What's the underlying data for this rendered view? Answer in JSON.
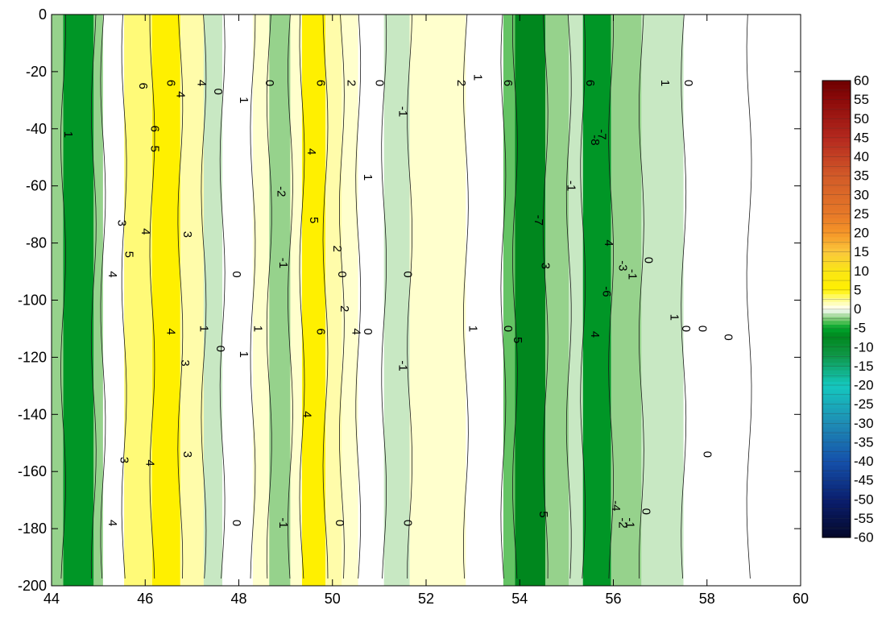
{
  "chart_data": {
    "type": "heatmap",
    "title": "",
    "xlabel": "",
    "ylabel": "",
    "xlim": [
      44,
      60
    ],
    "ylim": [
      -200,
      0
    ],
    "x_ticks": [
      44,
      46,
      48,
      50,
      52,
      54,
      56,
      58,
      60
    ],
    "y_ticks": [
      0,
      -20,
      -40,
      -60,
      -80,
      -100,
      -120,
      -140,
      -160,
      -180,
      -200
    ],
    "colorbar": {
      "min": -60,
      "max": 60,
      "tick_labels": [
        60,
        55,
        50,
        45,
        40,
        35,
        30,
        25,
        20,
        15,
        10,
        5,
        0,
        -5,
        -10,
        -15,
        -20,
        -25,
        -30,
        -35,
        -40,
        -45,
        -50,
        -55,
        -60
      ]
    },
    "field_bands": [
      {
        "x0": 44.0,
        "x1": 44.25,
        "value": -2
      },
      {
        "x0": 44.25,
        "x1": 44.9,
        "value": -6
      },
      {
        "x0": 44.9,
        "x1": 45.1,
        "value": -2
      },
      {
        "x0": 45.1,
        "x1": 45.55,
        "value": 0
      },
      {
        "x0": 45.55,
        "x1": 46.15,
        "value": 3
      },
      {
        "x0": 46.15,
        "x1": 46.75,
        "value": 5
      },
      {
        "x0": 46.75,
        "x1": 47.25,
        "value": 2
      },
      {
        "x0": 47.25,
        "x1": 47.65,
        "value": -1
      },
      {
        "x0": 47.65,
        "x1": 48.3,
        "value": 0
      },
      {
        "x0": 48.3,
        "x1": 48.65,
        "value": 1
      },
      {
        "x0": 48.65,
        "x1": 49.1,
        "value": -2
      },
      {
        "x0": 49.1,
        "x1": 49.35,
        "value": 1
      },
      {
        "x0": 49.35,
        "x1": 49.85,
        "value": 5
      },
      {
        "x0": 49.85,
        "x1": 50.2,
        "value": 2
      },
      {
        "x0": 50.2,
        "x1": 50.55,
        "value": 1
      },
      {
        "x0": 50.55,
        "x1": 51.1,
        "value": 0
      },
      {
        "x0": 51.1,
        "x1": 51.65,
        "value": -1
      },
      {
        "x0": 51.65,
        "x1": 52.85,
        "value": 1
      },
      {
        "x0": 52.85,
        "x1": 53.65,
        "value": 0
      },
      {
        "x0": 53.65,
        "x1": 53.9,
        "value": -3
      },
      {
        "x0": 53.9,
        "x1": 54.55,
        "value": -7
      },
      {
        "x0": 54.55,
        "x1": 55.05,
        "value": -2
      },
      {
        "x0": 55.05,
        "x1": 55.35,
        "value": -1
      },
      {
        "x0": 55.35,
        "x1": 55.95,
        "value": -6
      },
      {
        "x0": 55.95,
        "x1": 56.6,
        "value": -2
      },
      {
        "x0": 56.6,
        "x1": 57.5,
        "value": -1
      },
      {
        "x0": 57.5,
        "x1": 58.9,
        "value": 0
      },
      {
        "x0": 58.9,
        "x1": 60.0,
        "value": 0
      }
    ],
    "contour_labels": [
      {
        "x": 44.35,
        "y": -42,
        "text": "1"
      },
      {
        "x": 45.5,
        "y": -73,
        "text": "3"
      },
      {
        "x": 45.65,
        "y": -84,
        "text": "5"
      },
      {
        "x": 45.3,
        "y": -91,
        "text": "4"
      },
      {
        "x": 45.55,
        "y": -156,
        "text": "3"
      },
      {
        "x": 45.3,
        "y": -178,
        "text": "4"
      },
      {
        "x": 45.95,
        "y": -25,
        "text": "6"
      },
      {
        "x": 46.2,
        "y": -40,
        "text": "6"
      },
      {
        "x": 46.2,
        "y": -47,
        "text": "5"
      },
      {
        "x": 46.0,
        "y": -76,
        "text": "4"
      },
      {
        "x": 46.55,
        "y": -24,
        "text": "6"
      },
      {
        "x": 46.75,
        "y": -28,
        "text": "4"
      },
      {
        "x": 47.2,
        "y": -24,
        "text": "4"
      },
      {
        "x": 46.9,
        "y": -77,
        "text": "3"
      },
      {
        "x": 46.1,
        "y": -157,
        "text": "4"
      },
      {
        "x": 46.9,
        "y": -154,
        "text": "3"
      },
      {
        "x": 46.55,
        "y": -111,
        "text": "4"
      },
      {
        "x": 46.85,
        "y": -122,
        "text": "3"
      },
      {
        "x": 47.55,
        "y": -27,
        "text": "0"
      },
      {
        "x": 47.25,
        "y": -110,
        "text": "1"
      },
      {
        "x": 47.6,
        "y": -117,
        "text": "0"
      },
      {
        "x": 47.95,
        "y": -91,
        "text": "0"
      },
      {
        "x": 47.95,
        "y": -178,
        "text": "0"
      },
      {
        "x": 48.1,
        "y": -30,
        "text": "1"
      },
      {
        "x": 48.1,
        "y": -119,
        "text": "1"
      },
      {
        "x": 48.4,
        "y": -110,
        "text": "1"
      },
      {
        "x": 48.65,
        "y": -24,
        "text": "0"
      },
      {
        "x": 48.9,
        "y": -62,
        "text": "-2"
      },
      {
        "x": 48.95,
        "y": -87,
        "text": "-1"
      },
      {
        "x": 48.95,
        "y": -178,
        "text": "-1"
      },
      {
        "x": 49.55,
        "y": -48,
        "text": "4"
      },
      {
        "x": 49.6,
        "y": -72,
        "text": "5"
      },
      {
        "x": 49.45,
        "y": -140,
        "text": "4"
      },
      {
        "x": 49.75,
        "y": -24,
        "text": "6"
      },
      {
        "x": 49.75,
        "y": -111,
        "text": "6"
      },
      {
        "x": 50.1,
        "y": -82,
        "text": "2"
      },
      {
        "x": 50.2,
        "y": -91,
        "text": "0"
      },
      {
        "x": 50.25,
        "y": -103,
        "text": "2"
      },
      {
        "x": 50.15,
        "y": -178,
        "text": "0"
      },
      {
        "x": 50.4,
        "y": -24,
        "text": "2"
      },
      {
        "x": 50.5,
        "y": -111,
        "text": "4"
      },
      {
        "x": 50.75,
        "y": -57,
        "text": "1"
      },
      {
        "x": 50.75,
        "y": -111,
        "text": "0"
      },
      {
        "x": 51.0,
        "y": -24,
        "text": "0"
      },
      {
        "x": 51.5,
        "y": -34,
        "text": "-1"
      },
      {
        "x": 51.5,
        "y": -123,
        "text": "-1"
      },
      {
        "x": 51.6,
        "y": -91,
        "text": "0"
      },
      {
        "x": 51.6,
        "y": -178,
        "text": "0"
      },
      {
        "x": 52.75,
        "y": -24,
        "text": "2"
      },
      {
        "x": 53.1,
        "y": -22,
        "text": "1"
      },
      {
        "x": 53.0,
        "y": -110,
        "text": "1"
      },
      {
        "x": 53.75,
        "y": -24,
        "text": "6"
      },
      {
        "x": 53.75,
        "y": -110,
        "text": "0"
      },
      {
        "x": 53.95,
        "y": -114,
        "text": "5"
      },
      {
        "x": 54.4,
        "y": -72,
        "text": "-7"
      },
      {
        "x": 54.55,
        "y": -88,
        "text": "3"
      },
      {
        "x": 54.5,
        "y": -175,
        "text": "5"
      },
      {
        "x": 55.1,
        "y": -60,
        "text": "-1"
      },
      {
        "x": 55.5,
        "y": -24,
        "text": "6"
      },
      {
        "x": 55.6,
        "y": -112,
        "text": "4"
      },
      {
        "x": 55.6,
        "y": -44,
        "text": "-8"
      },
      {
        "x": 55.75,
        "y": -42,
        "text": "-7"
      },
      {
        "x": 55.9,
        "y": -80,
        "text": "4"
      },
      {
        "x": 55.85,
        "y": -97,
        "text": "-6"
      },
      {
        "x": 56.2,
        "y": -88,
        "text": "-3"
      },
      {
        "x": 56.05,
        "y": -172,
        "text": "-4"
      },
      {
        "x": 56.2,
        "y": -178,
        "text": "-2"
      },
      {
        "x": 56.4,
        "y": -91,
        "text": "-1"
      },
      {
        "x": 56.35,
        "y": -178,
        "text": "-1"
      },
      {
        "x": 56.75,
        "y": -86,
        "text": "0"
      },
      {
        "x": 56.7,
        "y": -174,
        "text": "0"
      },
      {
        "x": 57.1,
        "y": -24,
        "text": "1"
      },
      {
        "x": 57.3,
        "y": -106,
        "text": "1"
      },
      {
        "x": 57.6,
        "y": -24,
        "text": "0"
      },
      {
        "x": 57.55,
        "y": -110,
        "text": "0"
      },
      {
        "x": 57.9,
        "y": -110,
        "text": "0"
      },
      {
        "x": 58.45,
        "y": -113,
        "text": "0"
      },
      {
        "x": 58.0,
        "y": -154,
        "text": "0"
      }
    ]
  }
}
